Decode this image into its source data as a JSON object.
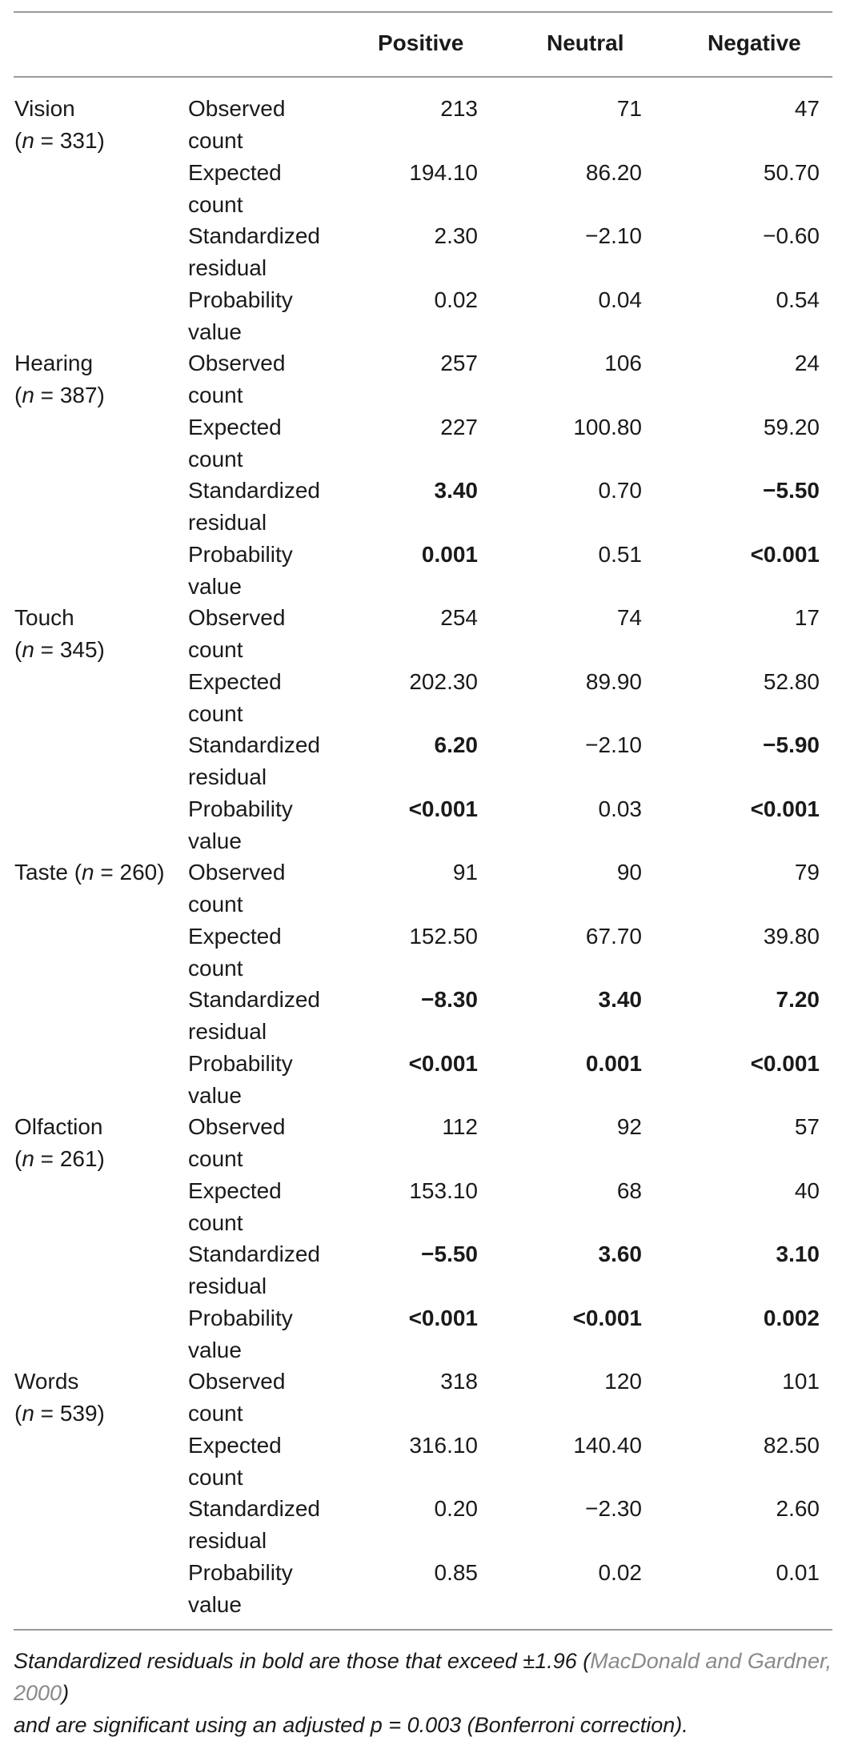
{
  "columns": [
    "Positive",
    "Neutral",
    "Negative"
  ],
  "stat_labels": {
    "observed": [
      "Observed",
      "count"
    ],
    "expected": [
      "Expected",
      "count"
    ],
    "residual": [
      "Standardized",
      "residual"
    ],
    "probability": [
      "Probability",
      "value"
    ]
  },
  "groups": [
    {
      "name": "Vision",
      "n": "(n = 331)",
      "rows": [
        {
          "values": [
            "213",
            "71",
            "47"
          ],
          "bold": [
            false,
            false,
            false
          ]
        },
        {
          "values": [
            "194.10",
            "86.20",
            "50.70"
          ],
          "bold": [
            false,
            false,
            false
          ]
        },
        {
          "values": [
            "2.30",
            "−2.10",
            "−0.60"
          ],
          "bold": [
            false,
            false,
            false
          ]
        },
        {
          "values": [
            "0.02",
            "0.04",
            "0.54"
          ],
          "bold": [
            false,
            false,
            false
          ]
        }
      ]
    },
    {
      "name": "Hearing",
      "n": "(n = 387)",
      "rows": [
        {
          "values": [
            "257",
            "106",
            "24"
          ],
          "bold": [
            false,
            false,
            false
          ]
        },
        {
          "values": [
            "227",
            "100.80",
            "59.20"
          ],
          "bold": [
            false,
            false,
            false
          ]
        },
        {
          "values": [
            "3.40",
            "0.70",
            "−5.50"
          ],
          "bold": [
            true,
            false,
            true
          ]
        },
        {
          "values": [
            "0.001",
            "0.51",
            "<0.001"
          ],
          "bold": [
            true,
            false,
            true
          ]
        }
      ]
    },
    {
      "name": "Touch",
      "n": "(n = 345)",
      "rows": [
        {
          "values": [
            "254",
            "74",
            "17"
          ],
          "bold": [
            false,
            false,
            false
          ]
        },
        {
          "values": [
            "202.30",
            "89.90",
            "52.80"
          ],
          "bold": [
            false,
            false,
            false
          ]
        },
        {
          "values": [
            "6.20",
            "−2.10",
            "−5.90"
          ],
          "bold": [
            true,
            false,
            true
          ]
        },
        {
          "values": [
            "<0.001",
            "0.03",
            "<0.001"
          ],
          "bold": [
            true,
            false,
            true
          ]
        }
      ]
    },
    {
      "name": "Taste (n = 260)",
      "n": "",
      "rows": [
        {
          "values": [
            "91",
            "90",
            "79"
          ],
          "bold": [
            false,
            false,
            false
          ]
        },
        {
          "values": [
            "152.50",
            "67.70",
            "39.80"
          ],
          "bold": [
            false,
            false,
            false
          ]
        },
        {
          "values": [
            "−8.30",
            "3.40",
            "7.20"
          ],
          "bold": [
            true,
            true,
            true
          ]
        },
        {
          "values": [
            "<0.001",
            "0.001",
            "<0.001"
          ],
          "bold": [
            true,
            true,
            true
          ]
        }
      ]
    },
    {
      "name": "Olfaction",
      "n": "(n = 261)",
      "rows": [
        {
          "values": [
            "112",
            "92",
            "57"
          ],
          "bold": [
            false,
            false,
            false
          ]
        },
        {
          "values": [
            "153.10",
            "68",
            "40"
          ],
          "bold": [
            false,
            false,
            false
          ]
        },
        {
          "values": [
            "−5.50",
            "3.60",
            "3.10"
          ],
          "bold": [
            true,
            true,
            true
          ]
        },
        {
          "values": [
            "<0.001",
            "<0.001",
            "0.002"
          ],
          "bold": [
            true,
            true,
            true
          ]
        }
      ]
    },
    {
      "name": "Words",
      "n": "(n = 539)",
      "rows": [
        {
          "values": [
            "318",
            "120",
            "101"
          ],
          "bold": [
            false,
            false,
            false
          ]
        },
        {
          "values": [
            "316.10",
            "140.40",
            "82.50"
          ],
          "bold": [
            false,
            false,
            false
          ]
        },
        {
          "values": [
            "0.20",
            "−2.30",
            "2.60"
          ],
          "bold": [
            false,
            false,
            false
          ]
        },
        {
          "values": [
            "0.85",
            "0.02",
            "0.01"
          ],
          "bold": [
            false,
            false,
            false
          ]
        }
      ]
    }
  ],
  "footnote": {
    "line1_text": "Standardized residuals in bold are those that exceed ±1.96 (",
    "line1_cite": "MacDonald and Gardner, 2000",
    "line1_end": ")",
    "line2": "and are significant using an adjusted p = 0.003 (Bonferroni correction)."
  }
}
